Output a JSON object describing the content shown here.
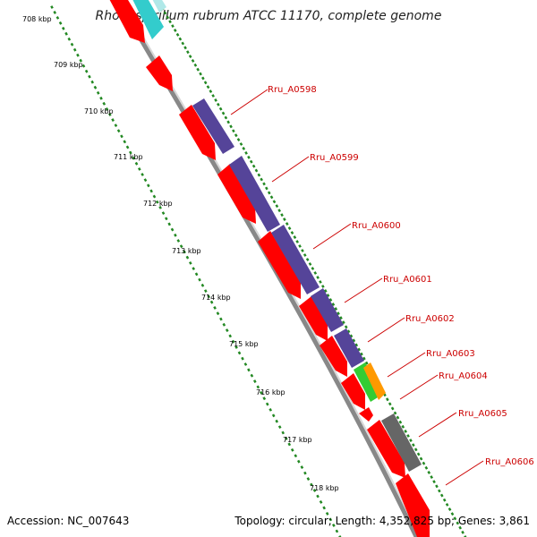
{
  "title": "Rhodospirillum rubrum ATCC 11170, complete genome",
  "accession": "Accession: NC_007643",
  "summary": "Topology: circular; Length: 4,352,825 bp; Genes: 3,861",
  "tick_labels": [
    "708 kbp",
    "709 kbp",
    "710 kbp",
    "711 kbp",
    "712 kbp",
    "713 kbp",
    "714 kbp",
    "715 kbp",
    "716 kbp",
    "717 kbp",
    "718 kbp"
  ],
  "gene_labels": [
    "Rru_A0598",
    "Rru_A0599",
    "Rru_A0600",
    "Rru_A0601",
    "Rru_A0602",
    "Rru_A0603",
    "Rru_A0604",
    "Rru_A0605",
    "Rru_A0606"
  ],
  "colors": {
    "cds": "#ff0000",
    "protein": "#554499",
    "cyan": "#33cccc",
    "orange": "#ff9900",
    "green": "#33cc33",
    "gray": "#666666",
    "backbone": "#888888",
    "tick": "#228822",
    "label": "#cc0000"
  }
}
